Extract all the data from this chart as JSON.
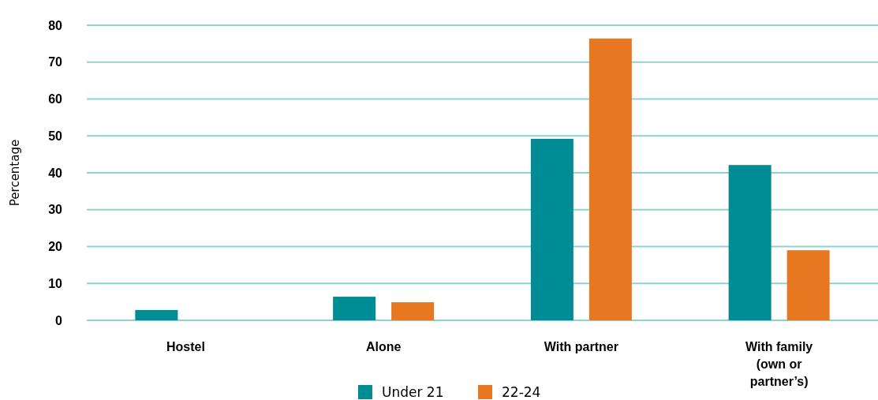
{
  "chart_data": {
    "type": "bar",
    "ylabel": "Percentage",
    "categories": [
      "Hostel",
      "Alone",
      "With partner",
      "With family (own or partner’s)"
    ],
    "series": [
      {
        "name": "Under 21",
        "color": "#008c95",
        "values": [
          2.8,
          6.4,
          49.2,
          42.1
        ]
      },
      {
        "name": "22-24",
        "color": "#e87722",
        "values": [
          null,
          4.9,
          76.4,
          19.0
        ]
      }
    ],
    "ylim": [
      0,
      80
    ],
    "yticks": [
      0,
      10,
      20,
      30,
      40,
      50,
      60,
      70,
      80
    ],
    "grid": "y",
    "legend": "bottom"
  }
}
